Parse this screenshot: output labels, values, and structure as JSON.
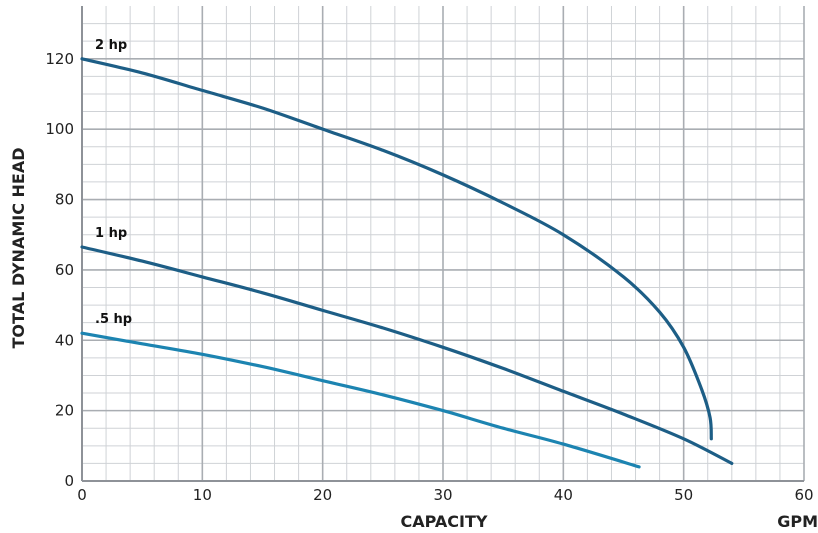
{
  "chart_data": {
    "type": "line",
    "xlabel": "CAPACITY",
    "x_unit": "GPM",
    "ylabel": "TOTAL DYNAMIC HEAD",
    "xlim": [
      0,
      60
    ],
    "ylim": [
      0,
      135
    ],
    "x_ticks": [
      0,
      10,
      20,
      30,
      40,
      50,
      60
    ],
    "y_ticks": [
      0,
      20,
      40,
      60,
      80,
      100,
      120
    ],
    "grid": true,
    "legend": "none",
    "series": [
      {
        "name": "2 hp",
        "color": "#1d5e86",
        "points": [
          [
            0,
            120
          ],
          [
            5,
            116
          ],
          [
            10,
            111
          ],
          [
            15,
            106
          ],
          [
            20,
            100
          ],
          [
            25,
            94
          ],
          [
            30,
            87
          ],
          [
            35,
            79
          ],
          [
            40,
            70
          ],
          [
            45,
            58
          ],
          [
            48,
            48
          ],
          [
            50,
            38
          ],
          [
            51.5,
            26
          ],
          [
            52.2,
            18
          ],
          [
            52.3,
            12
          ]
        ]
      },
      {
        "name": "1 hp",
        "color": "#1d5e86",
        "points": [
          [
            0,
            66.5
          ],
          [
            5,
            62.5
          ],
          [
            10,
            58
          ],
          [
            15,
            53.5
          ],
          [
            20,
            48.5
          ],
          [
            25,
            43.5
          ],
          [
            30,
            38
          ],
          [
            35,
            32
          ],
          [
            40,
            25.5
          ],
          [
            45,
            19
          ],
          [
            50,
            12
          ],
          [
            54,
            5
          ]
        ]
      },
      {
        "name": ".5 hp",
        "color": "#1c84b1",
        "points": [
          [
            0,
            42
          ],
          [
            5,
            39
          ],
          [
            10,
            36
          ],
          [
            15,
            32.5
          ],
          [
            20,
            28.5
          ],
          [
            25,
            24.5
          ],
          [
            30,
            20
          ],
          [
            35,
            15
          ],
          [
            40,
            10.5
          ],
          [
            46.3,
            4
          ]
        ]
      }
    ]
  }
}
